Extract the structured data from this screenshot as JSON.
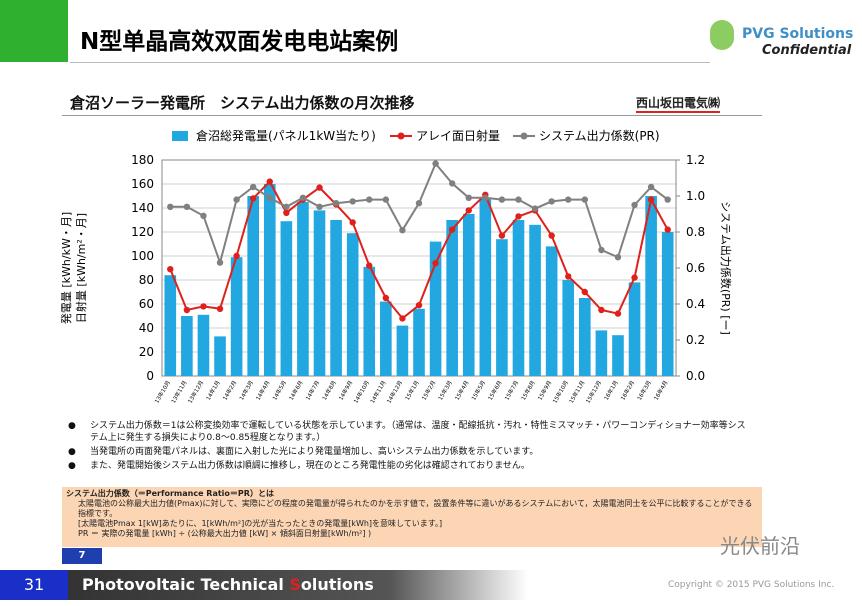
{
  "slide": {
    "title": "N型单晶高效双面发电电站案例",
    "logo": {
      "name": "PVG Solutions",
      "tag": "Confidential"
    },
    "subtitle": "倉沼ソーラー発電所　システム出力係数の月次推移",
    "company": "西山坂田電気㈱",
    "bullets": [
      "システム出力係数＝1は公称変換効率で運転している状態を示しています。（通常は、温度・配線抵抗・汚れ・特性ミスマッチ・パワーコンディショナー効率等システム上に発生する損失により0.8～0.85程度となります。）",
      "当発電所の両面発電パネルは、裏面に入射した光により発電量増加し、高いシステム出力係数を示しています。",
      "また、発電開始後システム出力係数は順調に推移し，現在のところ発電性能の劣化は確認されておりません。"
    ],
    "box": [
      "システム出力係数（＝Performance Ratio＝PR）とは",
      "太陽電池の公称最大出力値(Pmax)に対して、実際にどの程度の発電量が得られたのかを示す値で，設置条件等に違いがあるシステムにおいて，太陽電池同士を公平に比較することができる指標です。",
      "[太陽電池Pmax 1[kW]あたりに、1[kWh/m²]の光が当たったときの発電量[kWh]を意味しています。]",
      "PR ＝ 実際の発電量 [kWh] ÷ (公称最大出力値 [kW] × 傾斜面日射量[kWh/m²] )"
    ],
    "page_small": "7",
    "watermark": "光伏前沿",
    "page_number": "31",
    "footer": [
      "Photovoltaic Technical ",
      "S",
      "olutions"
    ],
    "copyright": "Copyright © 2015 PVG Solutions Inc."
  },
  "chart_data": {
    "type": "combo",
    "y_label": [
      "発電量 [kWh/kW・月]",
      "日射量 [kWh/m²・月]"
    ],
    "y2_label": "システム出力係数(PR) [ー]",
    "categories": [
      "13年10月",
      "13年11月",
      "13年12月",
      "14年1月",
      "14年2月",
      "14年3月",
      "14年4月",
      "14年5月",
      "14年6月",
      "14年7月",
      "14年8月",
      "14年9月",
      "14年10月",
      "14年11月",
      "14年12月",
      "15年1月",
      "15年2月",
      "15年3月",
      "15年4月",
      "15年5月",
      "15年6月",
      "15年7月",
      "15年8月",
      "15年9月",
      "15年10月",
      "15年11月",
      "15年12月",
      "16年1月",
      "16年2月",
      "16年3月",
      "16年4月"
    ],
    "series": [
      {
        "name": "倉沼総発電量(パネル1kW当たり)",
        "type": "bar",
        "color": "#22a7e0",
        "values": [
          84,
          50,
          51,
          33,
          99,
          150,
          160,
          129,
          145,
          138,
          130,
          119,
          91,
          62,
          42,
          56,
          112,
          130,
          135,
          148,
          114,
          130,
          126,
          108,
          80,
          65,
          38,
          34,
          78,
          150,
          120
        ]
      },
      {
        "name": "アレイ面日射量",
        "type": "line",
        "color": "#e0201b",
        "values": [
          89,
          55,
          58,
          56,
          100,
          148,
          162,
          136,
          147,
          157,
          143,
          128,
          92,
          65,
          48,
          59,
          94,
          122,
          138,
          151,
          117,
          133,
          138,
          117,
          83,
          70,
          55,
          52,
          82,
          147,
          122
        ]
      },
      {
        "name": "システム出力係数(PR)",
        "type": "line",
        "axis": "y2",
        "color": "#808080",
        "values": [
          0.94,
          0.94,
          0.89,
          0.63,
          0.98,
          1.05,
          0.99,
          0.94,
          0.99,
          0.94,
          0.96,
          0.97,
          0.98,
          0.98,
          0.81,
          0.96,
          1.18,
          1.07,
          0.99,
          0.99,
          0.98,
          0.98,
          0.93,
          0.97,
          0.98,
          0.98,
          0.7,
          0.66,
          0.95,
          1.05,
          0.98
        ]
      }
    ],
    "ylim": [
      0,
      180
    ],
    "yticks": [
      0,
      20,
      40,
      60,
      80,
      100,
      120,
      140,
      160,
      180
    ],
    "y2lim": [
      0,
      1.2
    ],
    "y2ticks": [
      {
        "value": 0,
        "label": "0.0"
      },
      0.2,
      0.4,
      0.6,
      0.8,
      {
        "value": 1,
        "label": "1.0"
      },
      1.2
    ],
    "grid": true
  }
}
